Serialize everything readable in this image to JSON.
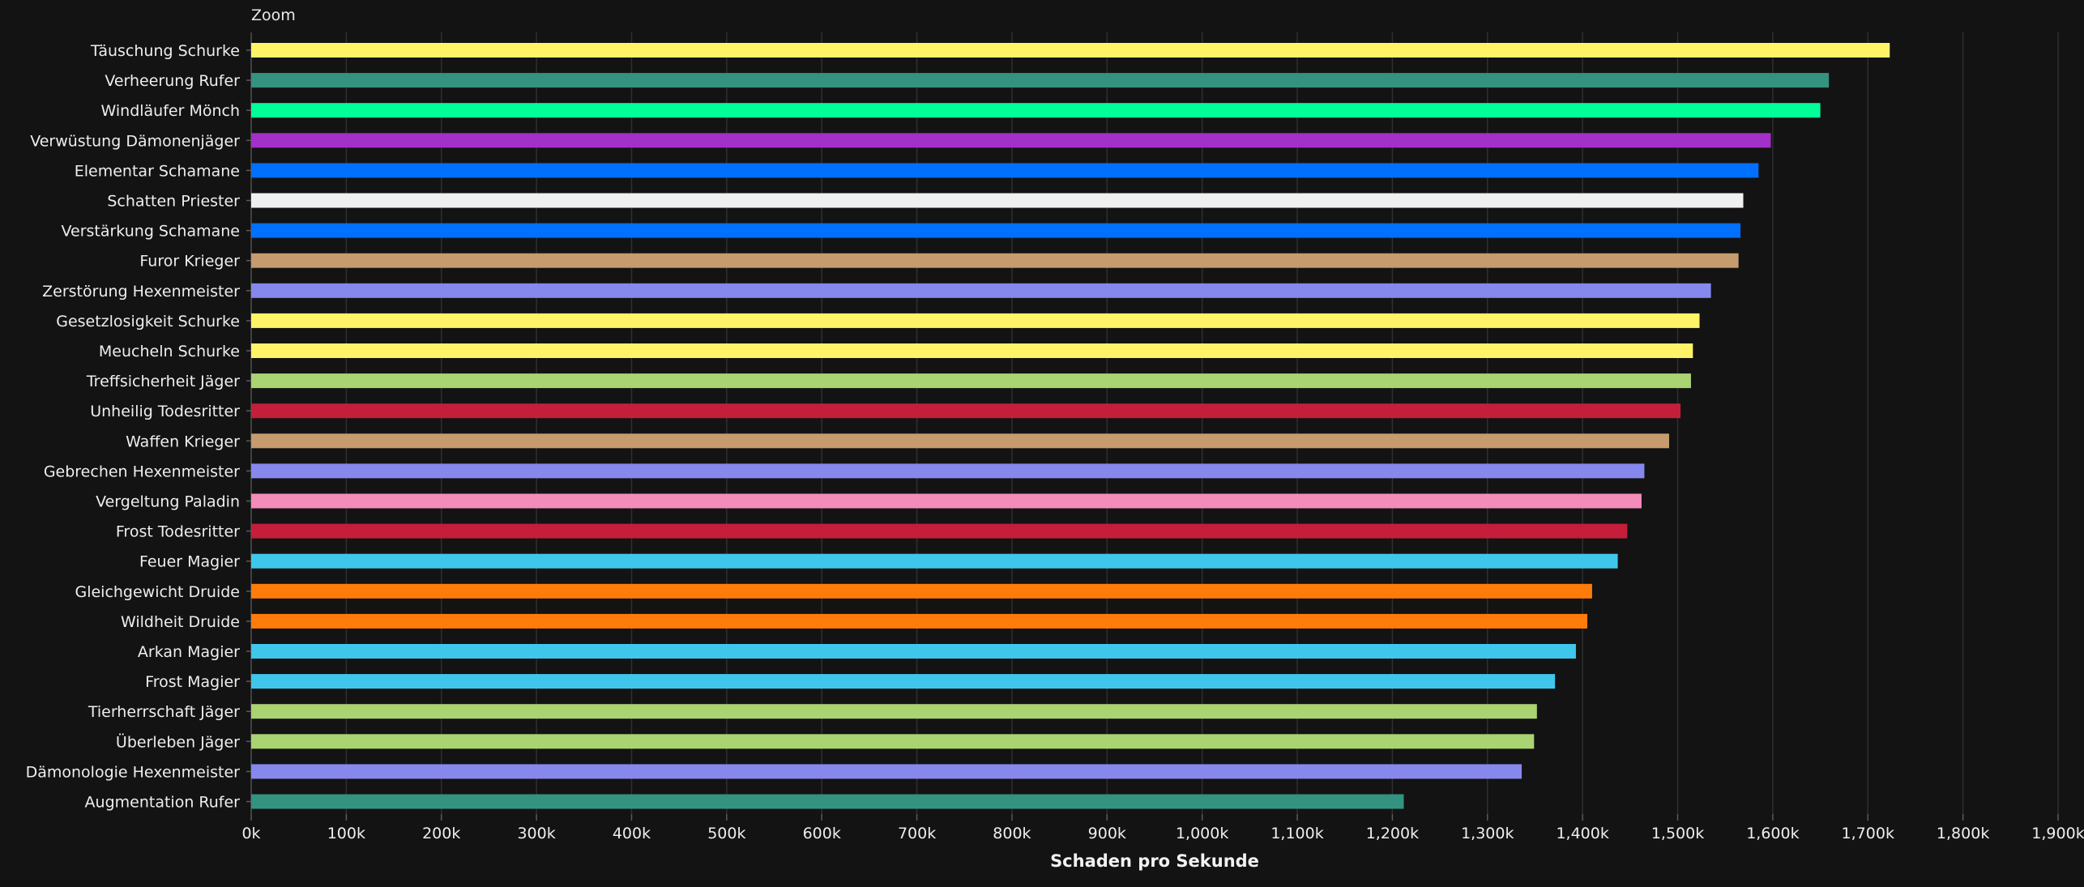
{
  "chart_data": {
    "type": "bar",
    "orientation": "horizontal",
    "zoom_label": "Zoom",
    "xlabel": "Schaden pro Sekunde",
    "xlim": [
      0,
      1900000
    ],
    "grid": true,
    "x_ticks": [
      0,
      100000,
      200000,
      300000,
      400000,
      500000,
      600000,
      700000,
      800000,
      900000,
      1000000,
      1100000,
      1200000,
      1300000,
      1400000,
      1500000,
      1600000,
      1700000,
      1800000,
      1900000
    ],
    "x_tick_labels": [
      "0k",
      "100k",
      "200k",
      "300k",
      "400k",
      "500k",
      "600k",
      "700k",
      "800k",
      "900k",
      "1,000k",
      "1,100k",
      "1,200k",
      "1,300k",
      "1,400k",
      "1,500k",
      "1,600k",
      "1,700k",
      "1,800k",
      "1,900k"
    ],
    "categories": [
      "Täuschung Schurke",
      "Verheerung Rufer",
      "Windläufer Mönch",
      "Verwüstung Dämonenjäger",
      "Elementar Schamane",
      "Schatten Priester",
      "Verstärkung Schamane",
      "Furor Krieger",
      "Zerstörung Hexenmeister",
      "Gesetzlosigkeit Schurke",
      "Meucheln Schurke",
      "Treffsicherheit Jäger",
      "Unheilig Todesritter",
      "Waffen Krieger",
      "Gebrechen Hexenmeister",
      "Vergeltung Paladin",
      "Frost Todesritter",
      "Feuer Magier",
      "Gleichgewicht Druide",
      "Wildheit Druide",
      "Arkan Magier",
      "Frost Magier",
      "Tierherrschaft Jäger",
      "Überleben Jäger",
      "Dämonologie Hexenmeister",
      "Augmentation Rufer"
    ],
    "values": [
      1723000,
      1659000,
      1650000,
      1598000,
      1585000,
      1569000,
      1566000,
      1564000,
      1535000,
      1523000,
      1516000,
      1514000,
      1503000,
      1491000,
      1465000,
      1462000,
      1447000,
      1437000,
      1410000,
      1405000,
      1393000,
      1371000,
      1352000,
      1349000,
      1336000,
      1212000
    ],
    "colors": [
      "#fff468",
      "#33937f",
      "#00ff98",
      "#a330c9",
      "#0070ff",
      "#f0f0f0",
      "#0070ff",
      "#c69b6d",
      "#8788ee",
      "#fff468",
      "#fff468",
      "#aad372",
      "#c41e3a",
      "#c69b6d",
      "#8788ee",
      "#f48cba",
      "#c41e3a",
      "#3fc7eb",
      "#ff7c0a",
      "#ff7c0a",
      "#3fc7eb",
      "#3fc7eb",
      "#aad372",
      "#aad372",
      "#8788ee",
      "#33937f"
    ]
  }
}
